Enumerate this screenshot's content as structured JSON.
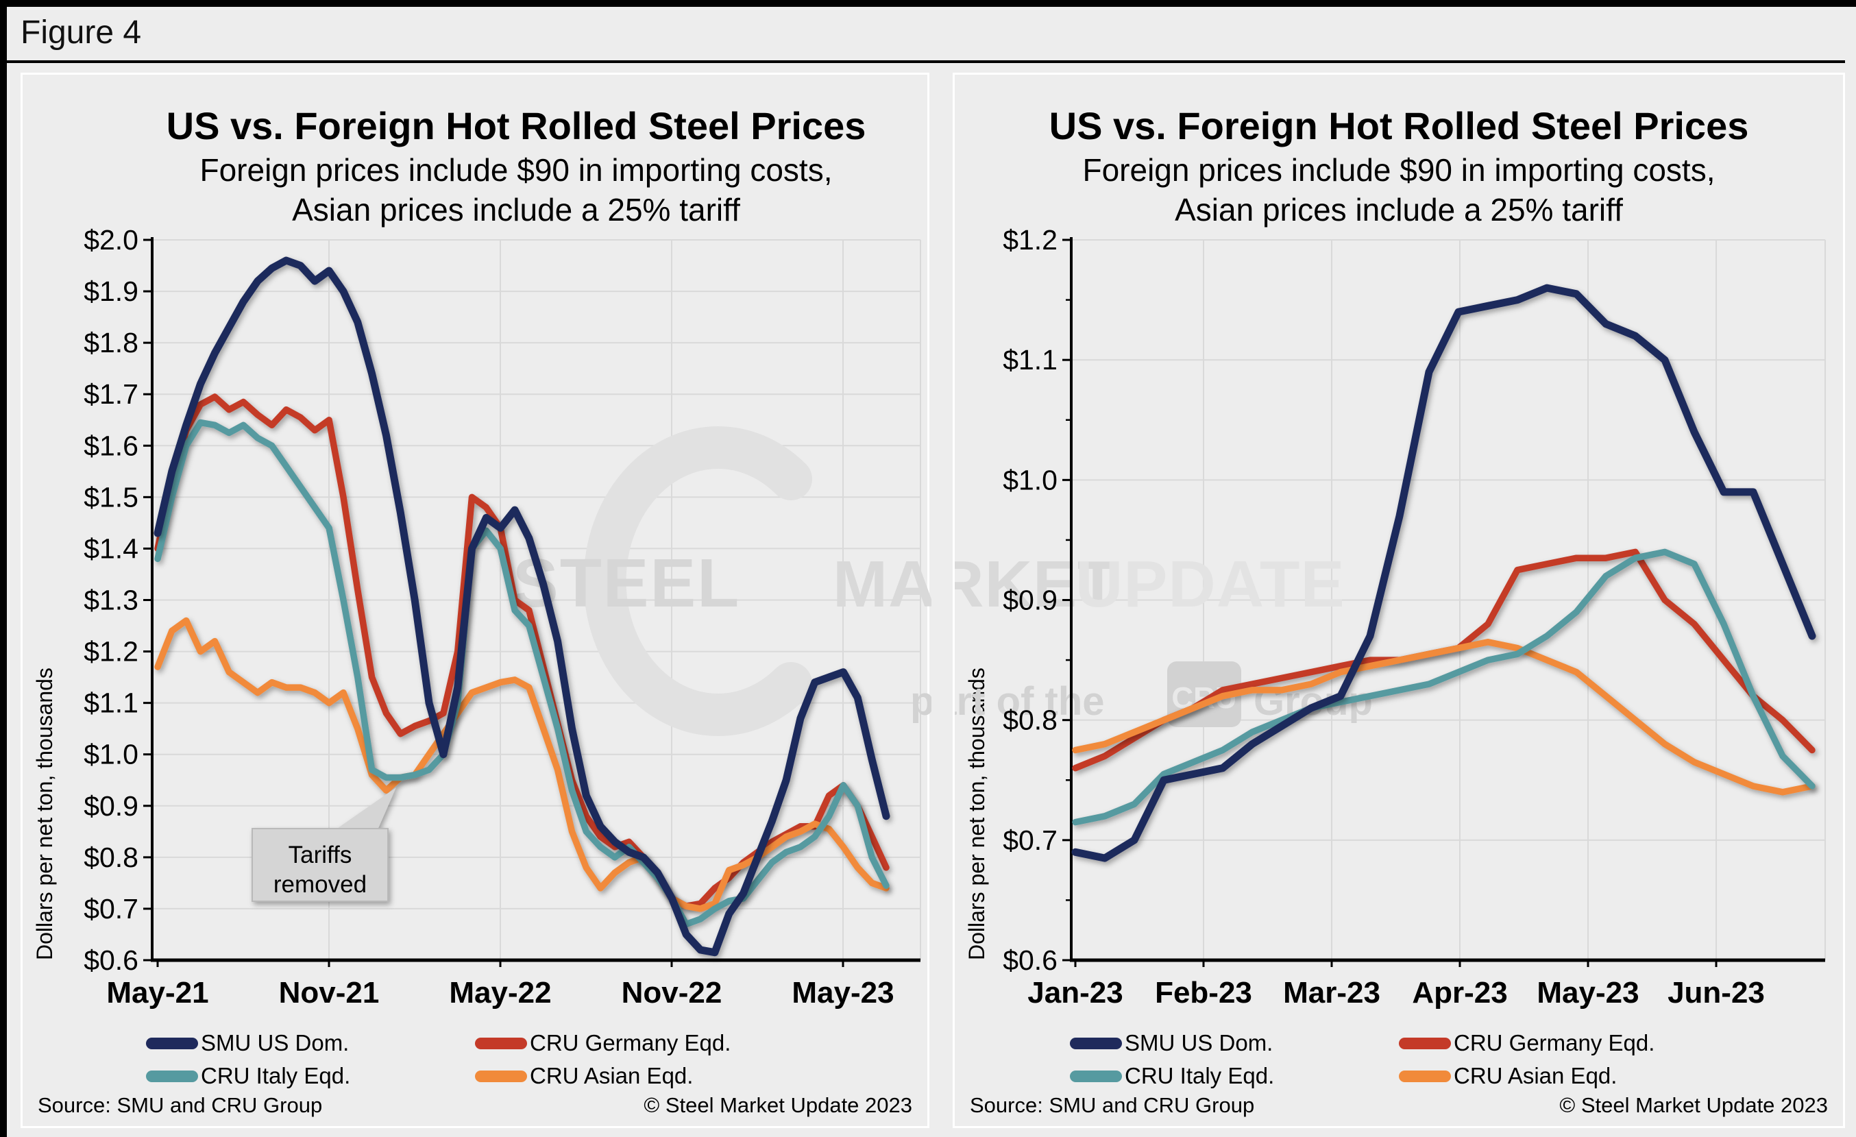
{
  "figure_label": "Figure 4",
  "watermark": {
    "brand_1": "STEEL",
    "brand_2": "MARKET",
    "brand_3": "UPDATE",
    "tagline_pre": "part of the",
    "logo": "CRU",
    "tagline_post": "Group"
  },
  "chart_data": [
    {
      "type": "line",
      "title": "US vs. Foreign Hot Rolled Steel Prices",
      "subtitle_line1": "Foreign prices include $90 in importing costs,",
      "subtitle_line2": "Asian prices include a 25% tariff",
      "ylabel": "Dollars per net ton, thousands",
      "ylim": [
        0.6,
        2.0
      ],
      "ytick_step": 0.1,
      "ytick_format": "$0.0",
      "grid": true,
      "legend_position": "bottom",
      "x_interval": "semi-monthly",
      "x_range": "May-2021 to Jun-2023",
      "x_tick_labels": [
        "May-21",
        "Nov-21",
        "May-22",
        "Nov-22",
        "May-23"
      ],
      "annotation": {
        "line1": "Tariffs",
        "line2": "removed"
      },
      "source": "Source: SMU and CRU Group",
      "copyright": "© Steel Market Update 2023",
      "series": [
        {
          "name": "SMU US Dom.",
          "color": "#1f2a5c",
          "values": [
            1.43,
            1.55,
            1.64,
            1.72,
            1.78,
            1.83,
            1.88,
            1.92,
            1.945,
            1.96,
            1.95,
            1.92,
            1.94,
            1.9,
            1.84,
            1.74,
            1.62,
            1.47,
            1.3,
            1.1,
            1.0,
            1.13,
            1.4,
            1.46,
            1.44,
            1.475,
            1.42,
            1.33,
            1.22,
            1.05,
            0.92,
            0.86,
            0.83,
            0.81,
            0.8,
            0.77,
            0.72,
            0.65,
            0.62,
            0.615,
            0.69,
            0.73,
            0.8,
            0.87,
            0.95,
            1.07,
            1.14,
            1.15,
            1.16,
            1.11,
            0.99,
            0.88
          ]
        },
        {
          "name": "CRU Germany Eqd.",
          "color": "#c43a28",
          "values": [
            1.4,
            1.53,
            1.63,
            1.68,
            1.695,
            1.67,
            1.685,
            1.66,
            1.64,
            1.67,
            1.655,
            1.63,
            1.65,
            1.5,
            1.32,
            1.15,
            1.08,
            1.04,
            1.055,
            1.065,
            1.08,
            1.2,
            1.5,
            1.48,
            1.44,
            1.3,
            1.28,
            1.17,
            1.06,
            0.95,
            0.88,
            0.84,
            0.82,
            0.83,
            0.8,
            0.76,
            0.72,
            0.705,
            0.71,
            0.74,
            0.76,
            0.79,
            0.81,
            0.83,
            0.845,
            0.86,
            0.86,
            0.92,
            0.94,
            0.9,
            0.84,
            0.78
          ]
        },
        {
          "name": "CRU Italy Eqd.",
          "color": "#569aa0",
          "values": [
            1.38,
            1.5,
            1.6,
            1.645,
            1.64,
            1.625,
            1.64,
            1.615,
            1.6,
            1.56,
            1.52,
            1.48,
            1.44,
            1.3,
            1.15,
            0.97,
            0.955,
            0.955,
            0.96,
            0.97,
            1.0,
            1.1,
            1.4,
            1.435,
            1.4,
            1.28,
            1.25,
            1.15,
            1.05,
            0.93,
            0.85,
            0.82,
            0.8,
            0.82,
            0.79,
            0.76,
            0.72,
            0.67,
            0.68,
            0.7,
            0.715,
            0.72,
            0.755,
            0.79,
            0.81,
            0.82,
            0.84,
            0.88,
            0.94,
            0.9,
            0.8,
            0.745
          ]
        },
        {
          "name": "CRU Asian Eqd.",
          "color": "#f18a3a",
          "values": [
            1.17,
            1.24,
            1.26,
            1.2,
            1.22,
            1.16,
            1.14,
            1.12,
            1.14,
            1.13,
            1.13,
            1.12,
            1.1,
            1.12,
            1.05,
            0.96,
            0.93,
            0.955,
            0.96,
            1.0,
            1.04,
            1.08,
            1.12,
            1.13,
            1.14,
            1.145,
            1.13,
            1.05,
            0.97,
            0.85,
            0.78,
            0.74,
            0.77,
            0.79,
            0.8,
            0.76,
            0.72,
            0.705,
            0.7,
            0.71,
            0.775,
            0.785,
            0.8,
            0.82,
            0.84,
            0.85,
            0.865,
            0.855,
            0.82,
            0.78,
            0.75,
            0.74
          ]
        }
      ]
    },
    {
      "type": "line",
      "title": "US vs. Foreign Hot Rolled Steel Prices",
      "subtitle_line1": "Foreign prices include $90 in importing costs,",
      "subtitle_line2": "Asian prices include a 25% tariff",
      "ylabel": "Dollars per net ton, thousands",
      "ylim": [
        0.6,
        1.2
      ],
      "ytick_step": 0.1,
      "ytick_format": "$0.0",
      "grid": true,
      "legend_position": "bottom",
      "x_interval": "weekly",
      "x_range": "Jan-2023 to Jun-2023",
      "x_tick_labels": [
        "Jan-23",
        "Feb-23",
        "Mar-23",
        "Apr-23",
        "May-23",
        "Jun-23"
      ],
      "annotation": null,
      "source": "Source: SMU and CRU Group",
      "copyright": "© Steel Market Update 2023",
      "series": [
        {
          "name": "SMU US Dom.",
          "color": "#1f2a5c",
          "values": [
            0.69,
            0.685,
            0.7,
            0.75,
            0.755,
            0.76,
            0.78,
            0.795,
            0.81,
            0.82,
            0.87,
            0.97,
            1.09,
            1.14,
            1.145,
            1.15,
            1.16,
            1.155,
            1.13,
            1.12,
            1.1,
            1.04,
            0.99,
            0.99,
            0.93,
            0.87
          ]
        },
        {
          "name": "CRU Germany Eqd.",
          "color": "#c43a28",
          "values": [
            0.76,
            0.77,
            0.785,
            0.8,
            0.81,
            0.825,
            0.83,
            0.835,
            0.84,
            0.845,
            0.85,
            0.85,
            0.855,
            0.86,
            0.88,
            0.925,
            0.93,
            0.935,
            0.935,
            0.94,
            0.9,
            0.88,
            0.85,
            0.82,
            0.8,
            0.775
          ]
        },
        {
          "name": "CRU Italy Eqd.",
          "color": "#569aa0",
          "values": [
            0.715,
            0.72,
            0.73,
            0.755,
            0.765,
            0.775,
            0.79,
            0.8,
            0.81,
            0.815,
            0.82,
            0.825,
            0.83,
            0.84,
            0.85,
            0.855,
            0.87,
            0.89,
            0.92,
            0.935,
            0.94,
            0.93,
            0.88,
            0.82,
            0.77,
            0.745
          ]
        },
        {
          "name": "CRU Asian Eqd.",
          "color": "#f18a3a",
          "values": [
            0.775,
            0.78,
            0.79,
            0.8,
            0.81,
            0.82,
            0.825,
            0.825,
            0.83,
            0.84,
            0.845,
            0.85,
            0.855,
            0.86,
            0.865,
            0.86,
            0.85,
            0.84,
            0.82,
            0.8,
            0.78,
            0.765,
            0.755,
            0.745,
            0.74,
            0.745
          ]
        }
      ]
    }
  ]
}
